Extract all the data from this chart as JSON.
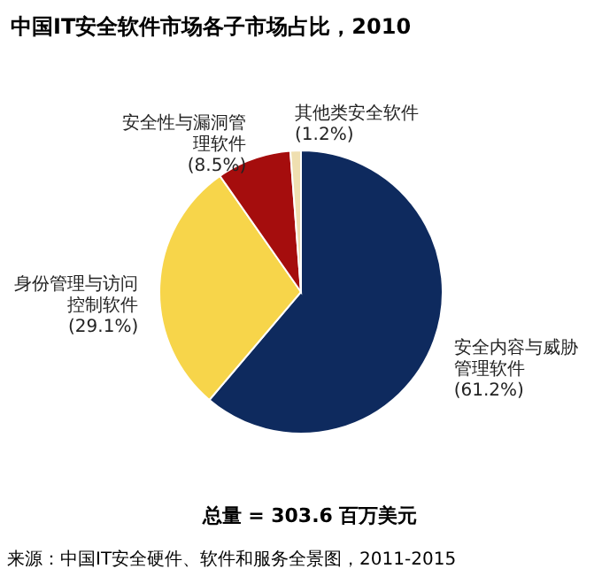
{
  "chart_data": {
    "type": "pie",
    "title": "中国IT安全软件市场各子市场占比，2010",
    "categories": [
      "安全内容与威胁管理软件",
      "身份管理与访问控制软件",
      "安全性与漏洞管理软件",
      "其他类安全软件"
    ],
    "values": [
      61.2,
      29.1,
      8.5,
      1.2
    ],
    "colors": [
      "#0e2a5e",
      "#f7d54a",
      "#a50d0d",
      "#efdfb0"
    ],
    "value_labels": [
      "(61.2%)",
      "(29.1%)",
      "(8.5%)",
      "(1.2%)"
    ],
    "annotations": [
      "总量 = 303.6 百万美元",
      "来源：中国IT安全硬件、软件和服务全景图，2011-2015"
    ]
  }
}
